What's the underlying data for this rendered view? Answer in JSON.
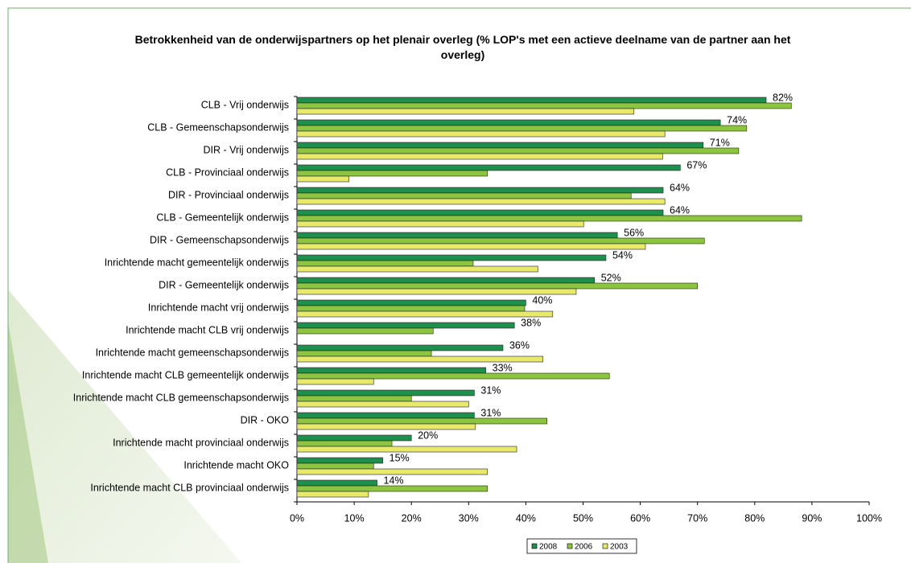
{
  "chart_data": {
    "type": "bar",
    "orientation": "horizontal",
    "title": "Betrokkenheid van de onderwijspartners op het plenair overleg (% LOP's met een actieve deelname van de partner aan het overleg)",
    "categories": [
      "CLB - Vrij onderwijs",
      "CLB - Gemeenschapsonderwijs",
      "DIR - Vrij onderwijs",
      "CLB - Provinciaal onderwijs",
      "DIR - Provinciaal onderwijs",
      "CLB - Gemeentelijk onderwijs",
      "DIR - Gemeenschapsonderwijs",
      "Inrichtende macht gemeentelijk onderwijs",
      "DIR - Gemeentelijk onderwijs",
      "Inrichtende macht vrij onderwijs",
      "Inrichtende macht CLB vrij onderwijs",
      "Inrichtende macht gemeenschapsonderwijs",
      "Inrichtende macht CLB gemeentelijk onderwijs",
      "Inrichtende macht CLB gemeenschapsonderwijs",
      "DIR - OKO",
      "Inrichtende macht provinciaal onderwijs",
      "Inrichtende macht OKO",
      "Inrichtende macht CLB provinciaal onderwijs"
    ],
    "series": [
      {
        "name": "2008",
        "color": "#1f8f4e",
        "values": [
          82,
          74,
          71,
          67,
          64,
          64,
          56,
          54,
          52,
          40,
          38,
          36,
          33,
          31,
          31,
          20,
          15,
          14
        ],
        "value_labels": [
          "82%",
          "74%",
          "71%",
          "67%",
          "64%",
          "64%",
          "56%",
          "54%",
          "52%",
          "40%",
          "38%",
          "36%",
          "33%",
          "31%",
          "31%",
          "20%",
          "15%",
          "14%"
        ]
      },
      {
        "name": "2006",
        "color": "#8cc63f",
        "values": [
          86.4,
          78.6,
          77.2,
          33.3,
          58.4,
          88.2,
          71.2,
          30.8,
          70.0,
          39.8,
          23.8,
          23.5,
          54.6,
          20.0,
          43.7,
          16.6,
          13.4,
          33.3
        ]
      },
      {
        "name": "2003",
        "color": "#e8e86a",
        "values": [
          58.9,
          64.3,
          63.9,
          9.1,
          64.3,
          50.1,
          60.9,
          42.1,
          48.8,
          44.7,
          null,
          43.0,
          13.4,
          30.0,
          31.2,
          38.4,
          33.3,
          12.5
        ]
      }
    ],
    "xlim": [
      0,
      100
    ],
    "xticks": [
      {
        "value": 0,
        "label": "0%"
      },
      {
        "value": 10,
        "label": "10%"
      },
      {
        "value": 20,
        "label": "20%"
      },
      {
        "value": 30,
        "label": "30%"
      },
      {
        "value": 40,
        "label": "40%"
      },
      {
        "value": 50,
        "label": "50%"
      },
      {
        "value": 60,
        "label": "60%"
      },
      {
        "value": 70,
        "label": "70%"
      },
      {
        "value": 80,
        "label": "80%"
      },
      {
        "value": 90,
        "label": "90%"
      },
      {
        "value": 100,
        "label": "100%"
      }
    ],
    "grid": false,
    "legend": "bottom"
  }
}
